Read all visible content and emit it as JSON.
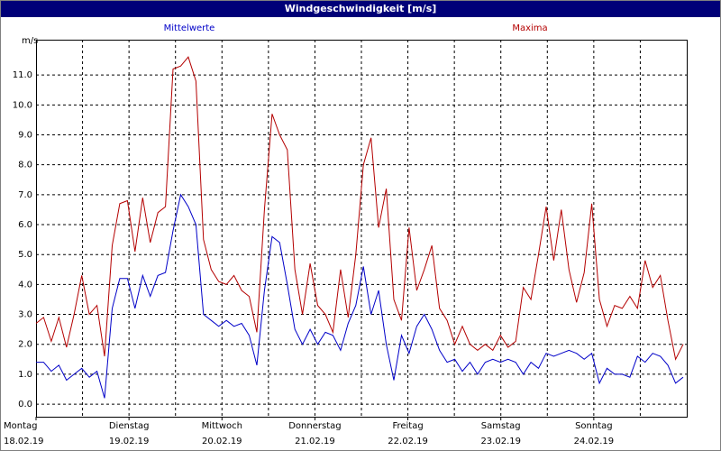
{
  "chart_data": {
    "type": "line",
    "title": "Windgeschwindigkeit [m/s]",
    "y_unit": "m/s",
    "x_labels": [
      [
        "Montag",
        "18.02.19"
      ],
      [
        "Dienstag",
        "19.02.19"
      ],
      [
        "Mittwoch",
        "20.02.19"
      ],
      [
        "Donnerstag",
        "21.02.19"
      ],
      [
        "Freitag",
        "22.02.19"
      ],
      [
        "Samstag",
        "23.02.19"
      ],
      [
        "Sonntag",
        "24.02.19"
      ]
    ],
    "ylim": [
      -0.42,
      12.18
    ],
    "yticks": [
      {
        "value": 0,
        "label": "0.0"
      },
      {
        "value": 1,
        "label": "1.0"
      },
      {
        "value": 2,
        "label": "2.0"
      },
      {
        "value": 3,
        "label": "3.0"
      },
      {
        "value": 4,
        "label": "4.0"
      },
      {
        "value": 5,
        "label": "5.0"
      },
      {
        "value": 6,
        "label": "6.0"
      },
      {
        "value": 7,
        "label": "7.0"
      },
      {
        "value": 8,
        "label": "8.0"
      },
      {
        "value": 9,
        "label": "9.0"
      },
      {
        "value": 10,
        "label": "10.0"
      },
      {
        "value": 11,
        "label": "11.0"
      }
    ],
    "grid": true,
    "series": [
      {
        "name": "Mittelwerte",
        "color": "#0000c8",
        "values": [
          1.4,
          1.4,
          1.1,
          1.3,
          0.8,
          1.0,
          1.2,
          0.9,
          1.1,
          0.2,
          3.2,
          4.2,
          4.2,
          3.2,
          4.3,
          3.6,
          4.3,
          4.4,
          5.8,
          7.0,
          6.6,
          6.0,
          3.0,
          2.8,
          2.6,
          2.8,
          2.6,
          2.7,
          2.3,
          1.3,
          3.8,
          5.6,
          5.4,
          4.0,
          2.5,
          2.0,
          2.5,
          2.0,
          2.4,
          2.3,
          1.8,
          2.7,
          3.3,
          4.6,
          3.0,
          3.8,
          2.0,
          0.8,
          2.3,
          1.7,
          2.6,
          3.0,
          2.5,
          1.8,
          1.4,
          1.5,
          1.1,
          1.4,
          1.0,
          1.4,
          1.5,
          1.4,
          1.5,
          1.4,
          1.0,
          1.4,
          1.2,
          1.7,
          1.6,
          1.7,
          1.8,
          1.7,
          1.5,
          1.7,
          0.7,
          1.2,
          1.0,
          1.0,
          0.9,
          1.6,
          1.4,
          1.7,
          1.6,
          1.3,
          0.7,
          0.9
        ]
      },
      {
        "name": "Maxima",
        "color": "#b40000",
        "values": [
          2.7,
          2.9,
          2.1,
          2.9,
          1.9,
          3.0,
          4.3,
          3.0,
          3.3,
          1.6,
          5.3,
          6.7,
          6.8,
          5.1,
          6.9,
          5.4,
          6.4,
          6.6,
          11.2,
          11.3,
          11.6,
          10.8,
          5.5,
          4.5,
          4.1,
          4.0,
          4.3,
          3.8,
          3.6,
          2.4,
          6.5,
          9.7,
          9.0,
          8.5,
          4.5,
          3.0,
          4.7,
          3.3,
          3.0,
          2.4,
          4.5,
          2.9,
          5.0,
          8.0,
          8.9,
          5.9,
          7.2,
          3.5,
          2.8,
          5.9,
          3.8,
          4.5,
          5.3,
          3.2,
          2.8,
          2.0,
          2.6,
          2.0,
          1.8,
          2.0,
          1.8,
          2.3,
          1.9,
          2.1,
          3.9,
          3.5,
          5.0,
          6.6,
          4.8,
          6.5,
          4.5,
          3.4,
          4.4,
          6.7,
          3.5,
          2.6,
          3.3,
          3.2,
          3.6,
          3.2,
          4.8,
          3.9,
          4.3,
          2.8,
          1.5,
          2.0
        ]
      }
    ]
  }
}
